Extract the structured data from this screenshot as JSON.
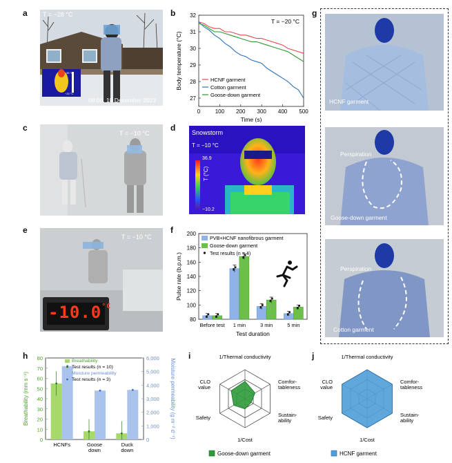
{
  "panels": {
    "a": {
      "letter": "a",
      "temp": "T = −28 °C",
      "timestamp": "08:00, 18 December 2023",
      "scale_hi": "35 °C",
      "scale_lo": "−20 °C"
    },
    "b": {
      "letter": "b",
      "temp": "T = −20 °C"
    },
    "c": {
      "letter": "c",
      "temp": "T = −10 °C"
    },
    "d": {
      "letter": "d",
      "title": "Snowstorm",
      "temp": "T = −10 °C",
      "scale_hi": "36.9",
      "scale_lo": "−10.2",
      "scale_label": "T (°C)"
    },
    "e": {
      "letter": "e",
      "temp": "T = −10 °C",
      "display": "-10.0",
      "display_unit": "°C"
    },
    "f": {
      "letter": "f",
      "icon": "runner-icon"
    },
    "g": {
      "letter": "g",
      "labels": [
        "HCNF garment",
        "Perspiration",
        "Goose-down garment",
        "Perspiration",
        "Cotton garment"
      ]
    },
    "h": {
      "letter": "h"
    },
    "i": {
      "letter": "i"
    },
    "j": {
      "letter": "j"
    }
  },
  "colors": {
    "hcnf": "#e8484f",
    "cotton": "#2a73b8",
    "goose": "#2c9a2c",
    "bar_blue": "#8fb3e8",
    "bar_green": "#6cc04a",
    "h_green": "#a6d96a",
    "h_blue": "#a9c3ec",
    "radar_green": "#2e9a3a",
    "radar_blue": "#4f9ed8"
  },
  "chart_data": [
    {
      "id": "b",
      "type": "line",
      "xlabel": "Time (s)",
      "ylabel": "Body temperature (°C)",
      "xlim": [
        0,
        500
      ],
      "ylim": [
        26.5,
        32
      ],
      "xticks": [
        0,
        100,
        200,
        300,
        400,
        500
      ],
      "yticks": [
        27,
        28,
        29,
        30,
        31,
        32
      ],
      "legend": "bottom-left",
      "series": [
        {
          "name": "HCNF garment",
          "x": [
            0,
            25,
            50,
            75,
            100,
            125,
            150,
            175,
            200,
            225,
            250,
            275,
            300,
            325,
            350,
            375,
            400,
            425,
            450,
            475,
            500
          ],
          "y": [
            31.6,
            31.5,
            31.3,
            31.2,
            31.2,
            31.0,
            31.0,
            30.9,
            30.8,
            30.8,
            30.7,
            30.6,
            30.6,
            30.5,
            30.4,
            30.3,
            30.2,
            30.0,
            29.9,
            29.8,
            29.7
          ]
        },
        {
          "name": "Cotton garment",
          "x": [
            0,
            25,
            50,
            75,
            100,
            125,
            150,
            175,
            200,
            225,
            250,
            275,
            300,
            325,
            350,
            375,
            400,
            425,
            450,
            475,
            500
          ],
          "y": [
            31.6,
            31.3,
            31.1,
            30.8,
            30.6,
            30.3,
            30.1,
            29.8,
            29.6,
            29.5,
            29.3,
            29.2,
            29.1,
            28.8,
            28.6,
            28.4,
            28.2,
            28.0,
            27.7,
            27.5,
            27.0
          ]
        },
        {
          "name": "Goose-down garment",
          "x": [
            0,
            25,
            50,
            75,
            100,
            125,
            150,
            175,
            200,
            225,
            250,
            275,
            300,
            325,
            350,
            375,
            400,
            425,
            450,
            475,
            500
          ],
          "y": [
            31.5,
            31.4,
            31.2,
            31.0,
            31.0,
            30.9,
            30.8,
            30.7,
            30.6,
            30.5,
            30.4,
            30.4,
            30.3,
            30.2,
            30.1,
            30.0,
            29.9,
            29.8,
            29.6,
            29.4,
            29.2
          ]
        }
      ]
    },
    {
      "id": "f",
      "type": "bar",
      "xlabel": "Test duration",
      "ylabel": "Pulse rate (b.p.m.)",
      "ylim": [
        80,
        200
      ],
      "yticks": [
        80,
        100,
        120,
        140,
        160,
        180,
        200
      ],
      "categories": [
        "Before test",
        "1 min",
        "3 min",
        "5 min"
      ],
      "legend": "top-left",
      "legend_points": "Test results (n = 4)",
      "series": [
        {
          "name": "PVB+HCNF nanofibrous garment",
          "values": [
            85,
            151,
            98,
            88
          ],
          "err": [
            3,
            5,
            4,
            3
          ]
        },
        {
          "name": "Goose-down garment",
          "values": [
            85,
            168,
            107,
            97
          ],
          "err": [
            3,
            4,
            4,
            3
          ]
        }
      ]
    },
    {
      "id": "h",
      "type": "bar",
      "categories": [
        "HCNFs",
        "Goose\ndown",
        "Duck\ndown"
      ],
      "ylabel_left": "Breathability (mm s⁻¹)",
      "ylabel_right": "Moisture permeability (g m⁻² d⁻¹)",
      "ylim_left": [
        0,
        80
      ],
      "yticks_left": [
        0,
        10,
        20,
        30,
        40,
        50,
        60,
        70,
        80
      ],
      "ylim_right": [
        0,
        6000
      ],
      "yticks_right": [
        0,
        1000,
        2000,
        3000,
        4000,
        5000,
        6000
      ],
      "ytick_labels_right": [
        "0",
        "1,000",
        "2,000",
        "3,000",
        "4,000",
        "5,000",
        "6,000"
      ],
      "legend": "top",
      "legend_entries": [
        "Breathability",
        "Test results (n = 10)",
        "Moisture permeability",
        "Test results (n = 3)"
      ],
      "series": [
        {
          "name": "Breathability",
          "axis": "left",
          "values": [
            55,
            8,
            6
          ]
        },
        {
          "name": "Moisture permeability",
          "axis": "right",
          "values": [
            5400,
            3600,
            3650
          ]
        }
      ]
    },
    {
      "id": "i",
      "type": "radar",
      "axes": [
        "1/Thermal conductivity",
        "Comfor-\ntableness",
        "Sustain-\nability",
        "1/Cost",
        "Safety",
        "CLO\nvalue"
      ],
      "series": [
        {
          "name": "Goose-down garment",
          "values": [
            0.6,
            0.4,
            0.25,
            0.35,
            0.45,
            0.55
          ]
        }
      ]
    },
    {
      "id": "j",
      "type": "radar",
      "axes": [
        "1/Thermal conductivity",
        "Comfor-\ntableness",
        "Sustain-\nability",
        "1/Cost",
        "Safety",
        "CLO\nvalue"
      ],
      "series": [
        {
          "name": "HCNF garment",
          "values": [
            1,
            1,
            1,
            1,
            1,
            1
          ]
        }
      ]
    }
  ]
}
